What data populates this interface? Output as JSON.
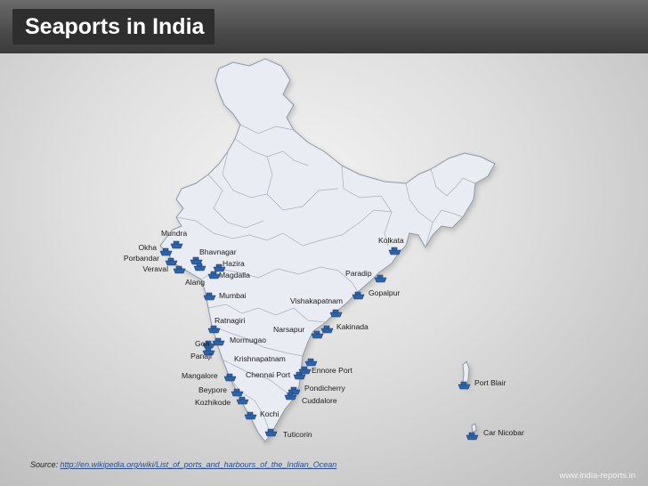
{
  "title": "Seaports in India",
  "colors": {
    "map_fill": "#e9ecf2",
    "map_stroke": "#8f97a6",
    "port_icon": "#2f63a8",
    "title_bg": "#2e2e2e"
  },
  "ports": [
    {
      "name": "Mundra",
      "icon": "ship-icon"
    },
    {
      "name": "Okha",
      "icon": "ship-icon"
    },
    {
      "name": "Porbandar",
      "icon": "ship-icon"
    },
    {
      "name": "Veraval",
      "icon": "ship-icon"
    },
    {
      "name": "Bhavnagar",
      "icon": "ship-icon"
    },
    {
      "name": "Hazira",
      "icon": "ship-icon"
    },
    {
      "name": "Magdalla",
      "icon": "ship-icon"
    },
    {
      "name": "Alang",
      "icon": "ship-icon"
    },
    {
      "name": "Mumbai",
      "icon": "ship-icon"
    },
    {
      "name": "Ratnagiri",
      "icon": "ship-icon"
    },
    {
      "name": "Mormugao",
      "icon": "ship-icon"
    },
    {
      "name": "Goa",
      "icon": "ship-icon"
    },
    {
      "name": "Panaji",
      "icon": "ship-icon"
    },
    {
      "name": "Mangalore",
      "icon": "ship-icon"
    },
    {
      "name": "Beypore",
      "icon": "ship-icon"
    },
    {
      "name": "Kozhikode",
      "icon": "ship-icon"
    },
    {
      "name": "Kochi",
      "icon": "ship-icon"
    },
    {
      "name": "Tuticorin",
      "icon": "ship-icon"
    },
    {
      "name": "Chennai Port",
      "icon": "ship-icon"
    },
    {
      "name": "Ennore Port",
      "icon": "ship-icon"
    },
    {
      "name": "Pondicherry",
      "icon": "ship-icon"
    },
    {
      "name": "Cuddalore",
      "icon": "ship-icon"
    },
    {
      "name": "Krishnapatnam",
      "icon": "ship-icon"
    },
    {
      "name": "Narsapur",
      "icon": "ship-icon"
    },
    {
      "name": "Kakinada",
      "icon": "ship-icon"
    },
    {
      "name": "Vishakapatnam",
      "icon": "ship-icon"
    },
    {
      "name": "Gopalpur",
      "icon": "ship-icon"
    },
    {
      "name": "Paradip",
      "icon": "ship-icon"
    },
    {
      "name": "Kolkata",
      "icon": "ship-icon"
    },
    {
      "name": "Port Blair",
      "icon": "ship-icon"
    },
    {
      "name": "Car Nicobar",
      "icon": "ship-icon"
    }
  ],
  "source": {
    "label": "Source:",
    "url": "http://en.wikipedia.org/wiki/List_of_ports_and_harbours_of_the_Indian_Ocean"
  },
  "website": "www.india-reports.in"
}
